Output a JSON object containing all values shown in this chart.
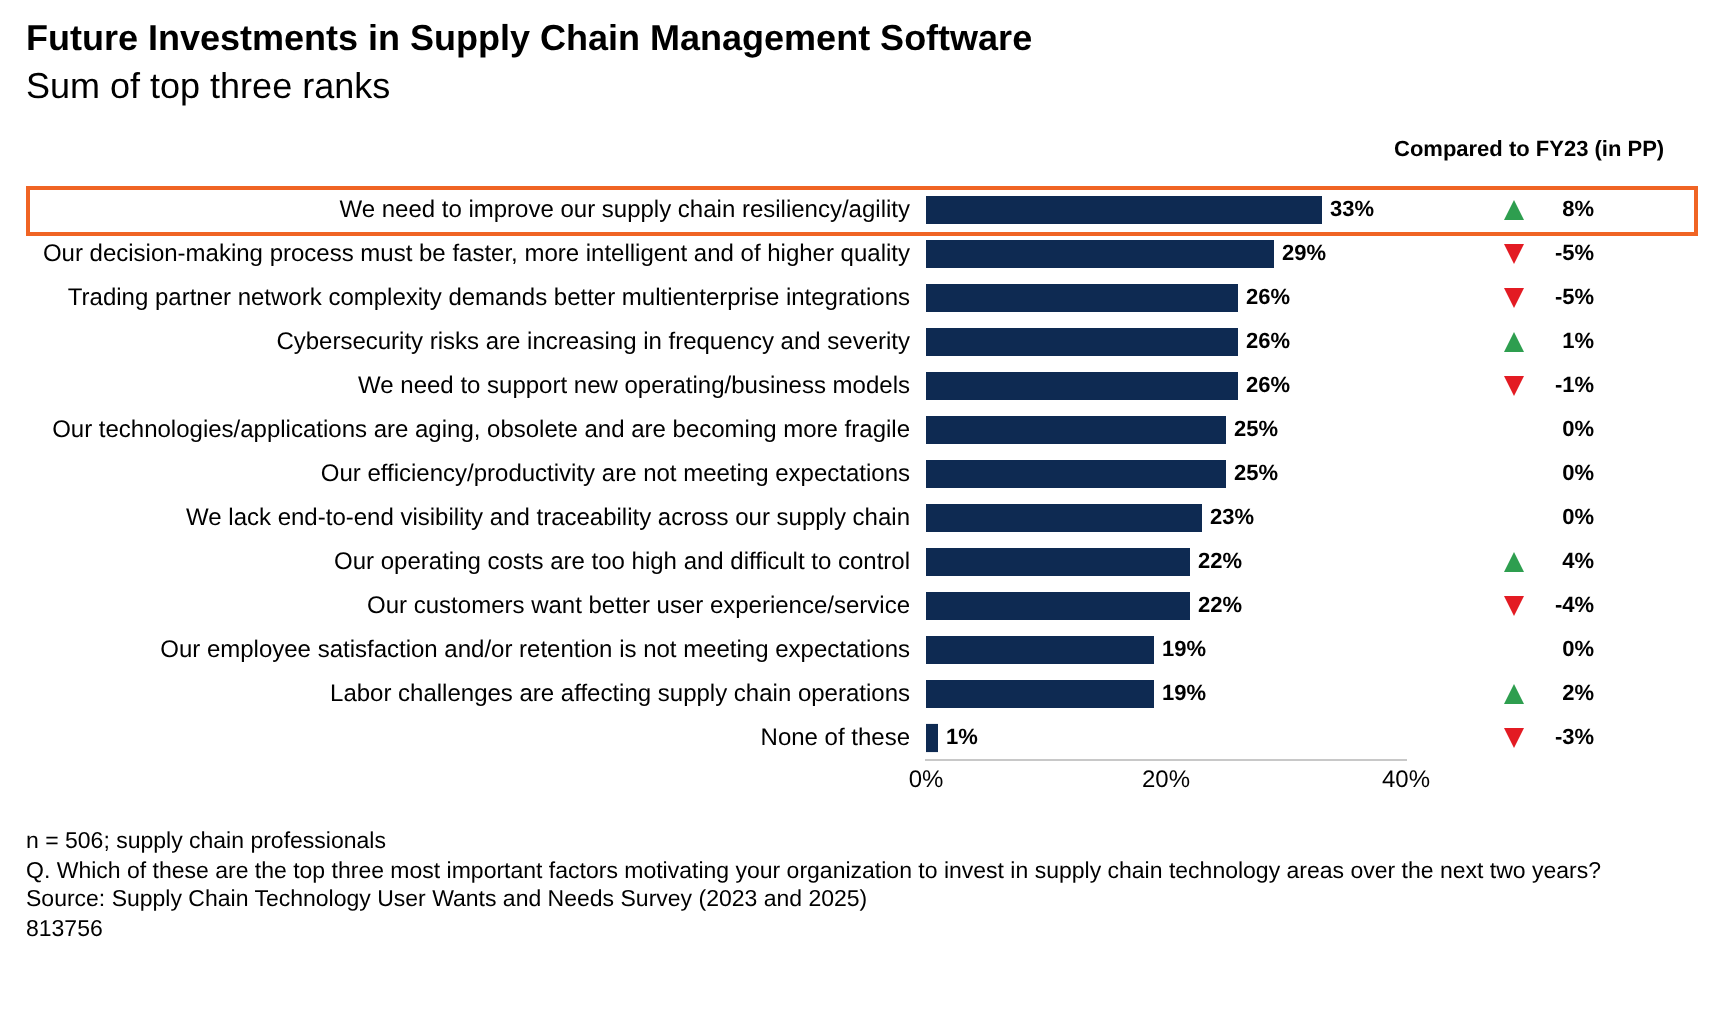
{
  "chart_data": [
    {
      "type": "bar",
      "orientation": "horizontal",
      "title": "Future Investments in Supply Chain Management Software",
      "subtitle": "Sum of top three ranks",
      "categories": [
        "We need to improve our supply chain resiliency/agility",
        "Our decision-making process must be faster, more intelligent and of higher quality",
        "Trading partner network complexity demands better multienterprise integrations",
        "Cybersecurity risks are increasing in frequency and severity",
        "We need to support new operating/business models",
        "Our technologies/applications are aging, obsolete and are becoming more fragile",
        "Our efficiency/productivity are not meeting expectations",
        "We lack end-to-end visibility and traceability across our supply chain",
        "Our operating costs are too high and difficult to control",
        "Our customers want better user experience/service",
        "Our employee satisfaction and/or retention is not meeting expectations",
        "Labor challenges are affecting supply chain operations",
        "None of these"
      ],
      "values": [
        33,
        29,
        26,
        26,
        26,
        25,
        25,
        23,
        22,
        22,
        19,
        19,
        1
      ],
      "value_labels": [
        "33%",
        "29%",
        "26%",
        "26%",
        "26%",
        "25%",
        "25%",
        "23%",
        "22%",
        "22%",
        "19%",
        "19%",
        "1%"
      ],
      "color": "#0e2a52",
      "xlim": [
        0,
        40
      ],
      "xticks": [
        {
          "value": 0,
          "label": "0%"
        },
        {
          "value": 20,
          "label": "20%"
        },
        {
          "value": 40,
          "label": "40%"
        }
      ],
      "grid": false,
      "legend": false,
      "annotations": [
        "n = 506; supply chain professionals",
        "Q. Which of these are the top three most important factors motivating your organization to invest in supply chain technology areas over the next two years?",
        "Source: Supply Chain Technology User Wants and Needs Survey (2023 and 2025)",
        "813756"
      ]
    },
    {
      "type": "other",
      "title": "Compared to FY23 (in PP)",
      "values": [
        8,
        -5,
        -5,
        1,
        -1,
        0,
        0,
        0,
        4,
        -4,
        0,
        2,
        -3
      ],
      "value_labels": [
        "8%",
        "-5%",
        "-5%",
        "1%",
        "-1%",
        "0%",
        "0%",
        "0%",
        "4%",
        "-4%",
        "0%",
        "2%",
        "-3%"
      ],
      "colors": [
        "#2e9e4f",
        "#e31b23",
        "#e31b23",
        "#2e9e4f",
        "#e31b23",
        null,
        null,
        null,
        "#2e9e4f",
        "#e31b23",
        null,
        "#2e9e4f",
        "#e31b23"
      ]
    }
  ]
}
